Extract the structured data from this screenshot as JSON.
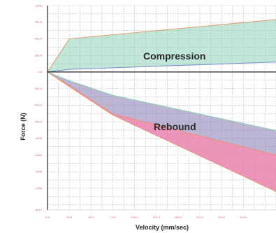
{
  "colors": {
    "grid": "#b9b9b9",
    "axis": "#222222",
    "tick_text": "#c0504d",
    "compression_fill": "#8fd3b8",
    "compression_edge": "#e8906a",
    "compression_low_edge": "#7a8fd0",
    "rebound_fill_inner": "#8f86b8",
    "rebound_fill_outer": "#e87aa6",
    "rebound_edge": "#e8906a",
    "rebound_teal_edge": "#8fd3b8"
  },
  "chart_data": {
    "type": "area",
    "xlabel": "Velocity (mm/sec)",
    "ylabel": "Force (N)",
    "xlim": [
      0,
      262.5
    ],
    "ylim": [
      -2077,
      1000
    ],
    "x_ticks": [
      "0.0",
      "25.0",
      "50.0",
      "75.0",
      "100.0",
      "125.0",
      "150.0",
      "175.0",
      "200.0",
      "225.0"
    ],
    "y_ticks": [
      "1000",
      "750.0",
      "500.0",
      "250.0",
      "0.0",
      "-250.0",
      "-500.0",
      "-750.0",
      "-1000",
      "-1250",
      "-1500",
      "-1750",
      "-2077"
    ],
    "annotations": [
      "Compression",
      "Rebound"
    ],
    "series": [
      {
        "name": "Compression",
        "x": [
          0,
          25,
          262.5
        ],
        "upper": [
          0,
          500,
          790
        ],
        "lower": [
          0,
          40,
          150
        ]
      },
      {
        "name": "Rebound",
        "x": [
          0,
          25,
          75,
          262.5
        ],
        "upper": [
          0,
          -130,
          -350,
          -880
        ],
        "inner_lower": [
          0,
          -200,
          -630,
          -1250
        ],
        "lower": [
          0,
          -220,
          -650,
          -1800
        ]
      }
    ]
  }
}
